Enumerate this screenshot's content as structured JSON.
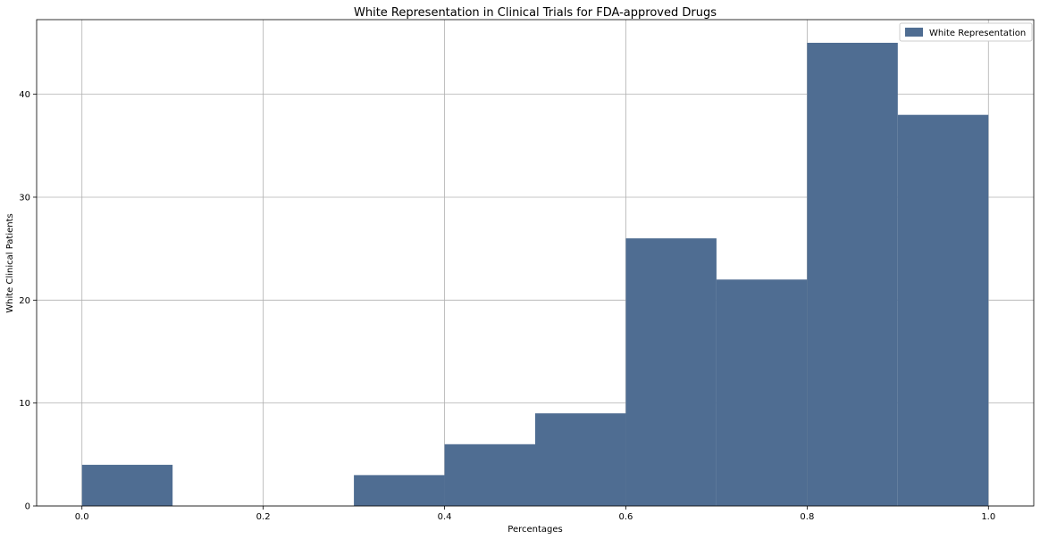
{
  "chart_data": {
    "type": "bar",
    "title": "White Representation in Clinical Trials for FDA-approved Drugs",
    "xlabel": "Percentages",
    "ylabel": "White Clinical Patients",
    "xlim": [
      -0.05,
      1.05
    ],
    "ylim": [
      0,
      47.25
    ],
    "xticks": [
      "0.0",
      "0.2",
      "0.4",
      "0.6",
      "0.8",
      "1.0"
    ],
    "yticks": [
      "0",
      "10",
      "20",
      "30",
      "40"
    ],
    "grid": true,
    "legend_position": "top-right",
    "bins": [
      {
        "x0": 0.0,
        "x1": 0.1,
        "value": 4
      },
      {
        "x0": 0.1,
        "x1": 0.2,
        "value": 0
      },
      {
        "x0": 0.2,
        "x1": 0.3,
        "value": 0
      },
      {
        "x0": 0.3,
        "x1": 0.4,
        "value": 3
      },
      {
        "x0": 0.4,
        "x1": 0.5,
        "value": 6
      },
      {
        "x0": 0.5,
        "x1": 0.6,
        "value": 9
      },
      {
        "x0": 0.6,
        "x1": 0.7,
        "value": 26
      },
      {
        "x0": 0.7,
        "x1": 0.8,
        "value": 22
      },
      {
        "x0": 0.8,
        "x1": 0.9,
        "value": 45
      },
      {
        "x0": 0.9,
        "x1": 1.0,
        "value": 38
      }
    ],
    "series": [
      {
        "name": "White Representation",
        "color": "#4f6d92"
      }
    ]
  }
}
